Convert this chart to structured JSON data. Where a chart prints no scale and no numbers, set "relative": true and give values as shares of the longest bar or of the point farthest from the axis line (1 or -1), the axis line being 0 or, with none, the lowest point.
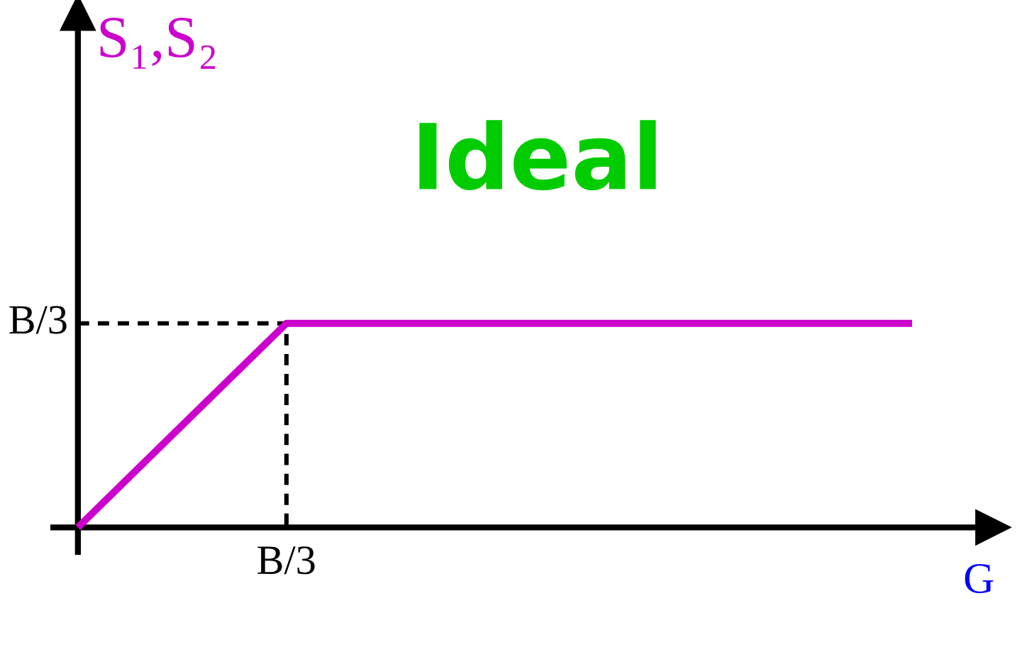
{
  "chart_data": {
    "type": "line",
    "relative": true,
    "xlabel": "G",
    "ylabel": "S₁,S₂",
    "annotations": [
      "Ideal",
      "B/3",
      "B/3"
    ],
    "categories": [
      null,
      null,
      null,
      null,
      null
    ],
    "series": [
      {
        "color": "#cc00cc",
        "values": [
          0,
          1,
          1,
          1,
          1
        ]
      },
      {
        "type": "step",
        "color": "#000000",
        "line_style": "dotted",
        "values": [
          1,
          0,
          null,
          null,
          null
        ]
      }
    ]
  }
}
